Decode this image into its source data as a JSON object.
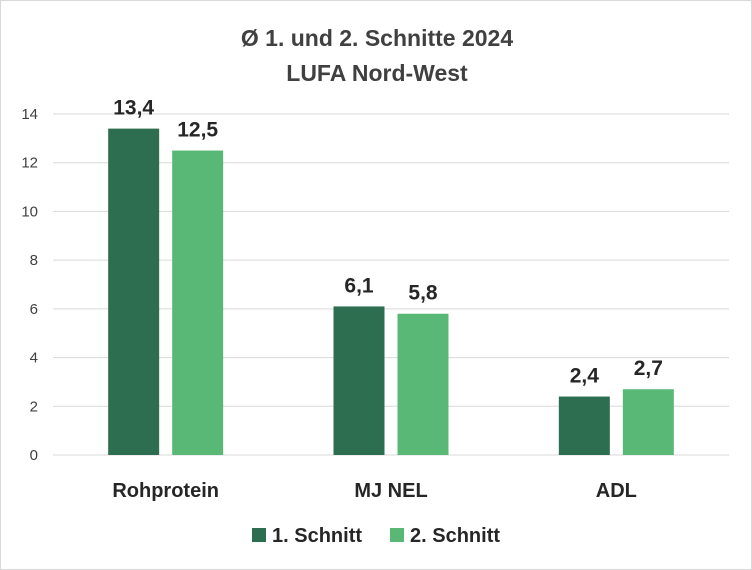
{
  "chart_data": {
    "type": "bar",
    "title": "Ø 1. und 2. Schnitte 2024",
    "subtitle": "LUFA Nord-West",
    "categories": [
      "Rohprotein",
      "MJ NEL",
      "ADL"
    ],
    "series": [
      {
        "name": "1. Schnitt",
        "values": [
          13.4,
          6.1,
          2.4
        ],
        "labels": [
          "13,4",
          "6,1",
          "2,4"
        ],
        "color": "#2e6e50"
      },
      {
        "name": "2. Schnitt",
        "values": [
          12.5,
          5.8,
          2.7
        ],
        "labels": [
          "12,5",
          "5,8",
          "2,7"
        ],
        "color": "#5ab877"
      }
    ],
    "ylim": [
      0,
      14
    ],
    "yticks": [
      0,
      2,
      4,
      6,
      8,
      10,
      12,
      14
    ],
    "grid": true,
    "legend": "bottom",
    "gridline_color": "#d9d9d9",
    "text_color": "#404040"
  }
}
